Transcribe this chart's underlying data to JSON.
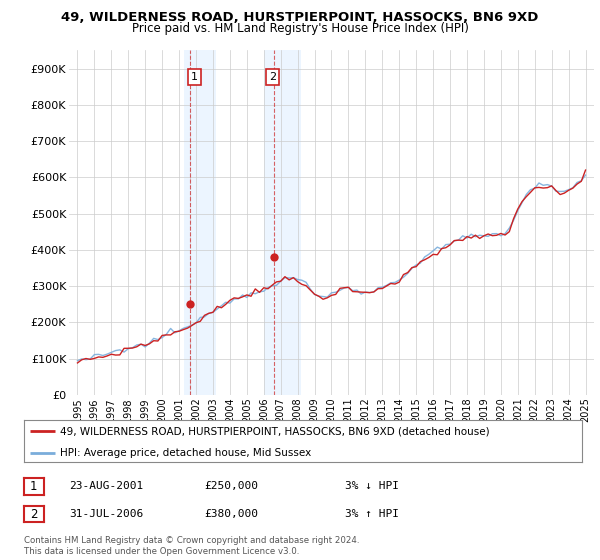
{
  "title1": "49, WILDERNESS ROAD, HURSTPIERPOINT, HASSOCKS, BN6 9XD",
  "title2": "Price paid vs. HM Land Registry's House Price Index (HPI)",
  "ylabel_ticks": [
    "£0",
    "£100K",
    "£200K",
    "£300K",
    "£400K",
    "£500K",
    "£600K",
    "£700K",
    "£800K",
    "£900K"
  ],
  "ytick_values": [
    0,
    100000,
    200000,
    300000,
    400000,
    500000,
    600000,
    700000,
    800000,
    900000
  ],
  "ylim": [
    0,
    950000
  ],
  "xlim_start": 1994.5,
  "xlim_end": 2025.5,
  "background_color": "#ffffff",
  "plot_bg_color": "#ffffff",
  "grid_color": "#cccccc",
  "hpi_line_color": "#7aaddb",
  "price_line_color": "#cc2222",
  "sale1_year": 2001.65,
  "sale1_price": 250000,
  "sale2_year": 2006.58,
  "sale2_price": 380000,
  "highlight1_start": 2001.3,
  "highlight1_end": 2003.2,
  "highlight2_start": 2006.0,
  "highlight2_end": 2008.2,
  "highlight_color": "#ddeeff",
  "highlight_alpha": 0.55,
  "vline1_year": 2001.65,
  "vline2_year": 2006.58,
  "label1_year": 2001.7,
  "label2_year": 2006.3,
  "legend_label1": "49, WILDERNESS ROAD, HURSTPIERPOINT, HASSOCKS, BN6 9XD (detached house)",
  "legend_label2": "HPI: Average price, detached house, Mid Sussex",
  "table_rows": [
    {
      "num": "1",
      "date": "23-AUG-2001",
      "price": "£250,000",
      "hpi": "3% ↓ HPI"
    },
    {
      "num": "2",
      "date": "31-JUL-2006",
      "price": "£380,000",
      "hpi": "3% ↑ HPI"
    }
  ],
  "footnote1": "Contains HM Land Registry data © Crown copyright and database right 2024.",
  "footnote2": "This data is licensed under the Open Government Licence v3.0.",
  "years_hpi": [
    1995,
    1995.25,
    1995.5,
    1995.75,
    1996,
    1996.25,
    1996.5,
    1996.75,
    1997,
    1997.25,
    1997.5,
    1997.75,
    1998,
    1998.25,
    1998.5,
    1998.75,
    1999,
    1999.25,
    1999.5,
    1999.75,
    2000,
    2000.25,
    2000.5,
    2000.75,
    2001,
    2001.25,
    2001.5,
    2001.75,
    2002,
    2002.25,
    2002.5,
    2002.75,
    2003,
    2003.25,
    2003.5,
    2003.75,
    2004,
    2004.25,
    2004.5,
    2004.75,
    2005,
    2005.25,
    2005.5,
    2005.75,
    2006,
    2006.25,
    2006.5,
    2006.75,
    2007,
    2007.25,
    2007.5,
    2007.75,
    2008,
    2008.25,
    2008.5,
    2008.75,
    2009,
    2009.25,
    2009.5,
    2009.75,
    2010,
    2010.25,
    2010.5,
    2010.75,
    2011,
    2011.25,
    2011.5,
    2011.75,
    2012,
    2012.25,
    2012.5,
    2012.75,
    2013,
    2013.25,
    2013.5,
    2013.75,
    2014,
    2014.25,
    2014.5,
    2014.75,
    2015,
    2015.25,
    2015.5,
    2015.75,
    2016,
    2016.25,
    2016.5,
    2016.75,
    2017,
    2017.25,
    2017.5,
    2017.75,
    2018,
    2018.25,
    2018.5,
    2018.75,
    2019,
    2019.25,
    2019.5,
    2019.75,
    2020,
    2020.25,
    2020.5,
    2020.75,
    2021,
    2021.25,
    2021.5,
    2021.75,
    2022,
    2022.25,
    2022.5,
    2022.75,
    2023,
    2023.25,
    2023.5,
    2023.75,
    2024,
    2024.25,
    2024.5,
    2024.75,
    2025
  ],
  "hpi_vals": [
    95000,
    97000,
    99000,
    101000,
    103000,
    106000,
    108000,
    111000,
    114000,
    117000,
    120000,
    123000,
    126000,
    129000,
    132000,
    136000,
    140000,
    144000,
    149000,
    154000,
    160000,
    165000,
    170000,
    175000,
    179000,
    183000,
    186000,
    190000,
    198000,
    208000,
    218000,
    228000,
    237000,
    244000,
    249000,
    253000,
    258000,
    264000,
    269000,
    274000,
    278000,
    282000,
    285000,
    288000,
    291000,
    295000,
    299000,
    305000,
    312000,
    318000,
    322000,
    322000,
    318000,
    312000,
    305000,
    295000,
    283000,
    272000,
    268000,
    272000,
    278000,
    283000,
    288000,
    292000,
    293000,
    291000,
    289000,
    287000,
    286000,
    287000,
    289000,
    291000,
    294000,
    299000,
    305000,
    312000,
    319000,
    328000,
    338000,
    348000,
    358000,
    368000,
    377000,
    386000,
    393000,
    400000,
    406000,
    411000,
    416000,
    421000,
    426000,
    430000,
    433000,
    435000,
    436000,
    437000,
    438000,
    440000,
    442000,
    444000,
    445000,
    447000,
    460000,
    485000,
    510000,
    530000,
    548000,
    562000,
    572000,
    578000,
    580000,
    578000,
    572000,
    568000,
    565000,
    563000,
    565000,
    572000,
    583000,
    597000,
    615000
  ],
  "price_vals": [
    93000,
    95000,
    97000,
    99000,
    101000,
    104000,
    106000,
    109000,
    112000,
    115000,
    118000,
    121000,
    124000,
    127000,
    130000,
    134000,
    138000,
    142000,
    147000,
    152000,
    158000,
    163000,
    168000,
    173000,
    177000,
    181000,
    184000,
    188000,
    196000,
    206000,
    216000,
    226000,
    235000,
    242000,
    247000,
    251000,
    256000,
    262000,
    267000,
    272000,
    276000,
    280000,
    283000,
    286000,
    289000,
    293000,
    297000,
    303000,
    310000,
    316000,
    320000,
    320000,
    316000,
    310000,
    303000,
    293000,
    281000,
    270000,
    266000,
    270000,
    276000,
    281000,
    286000,
    290000,
    291000,
    289000,
    287000,
    285000,
    284000,
    285000,
    287000,
    289000,
    292000,
    297000,
    303000,
    310000,
    317000,
    326000,
    336000,
    346000,
    356000,
    366000,
    375000,
    384000,
    391000,
    398000,
    404000,
    409000,
    414000,
    419000,
    424000,
    428000,
    431000,
    433000,
    434000,
    435000,
    436000,
    438000,
    440000,
    442000,
    443000,
    445000,
    458000,
    483000,
    508000,
    528000,
    546000,
    560000,
    570000,
    576000,
    578000,
    576000,
    570000,
    566000,
    563000,
    561000,
    563000,
    570000,
    581000,
    595000,
    620000
  ]
}
